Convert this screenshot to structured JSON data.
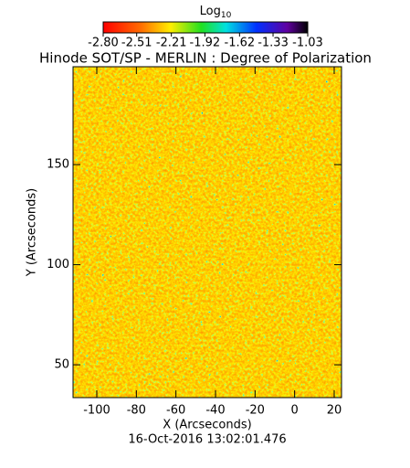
{
  "chart_data": {
    "type": "heatmap",
    "title": "Hinode SOT/SP - MERLIN : Degree of Polarization",
    "subtitle": "16-Oct-2016 13:02:01.476",
    "x_label": "X (Arcseconds)",
    "y_label": "Y (Arcseconds)",
    "colorbar_title": "Log",
    "colorbar_title_subscript": "10",
    "clim": [
      -2.8,
      -1.03
    ],
    "cticks": [
      {
        "value": -2.8,
        "label": "-2.80"
      },
      {
        "value": -2.51,
        "label": "-2.51"
      },
      {
        "value": -2.21,
        "label": "-2.21"
      },
      {
        "value": -1.92,
        "label": "-1.92"
      },
      {
        "value": -1.62,
        "label": "-1.62"
      },
      {
        "value": -1.33,
        "label": "-1.33"
      },
      {
        "value": -1.03,
        "label": "-1.03"
      }
    ],
    "xlim": [
      -112,
      23.7
    ],
    "xticks": [
      -100,
      -80,
      -60,
      -40,
      -20,
      0,
      20
    ],
    "ylim": [
      33.6,
      198.9
    ],
    "yticks": [
      50,
      100,
      150
    ]
  }
}
